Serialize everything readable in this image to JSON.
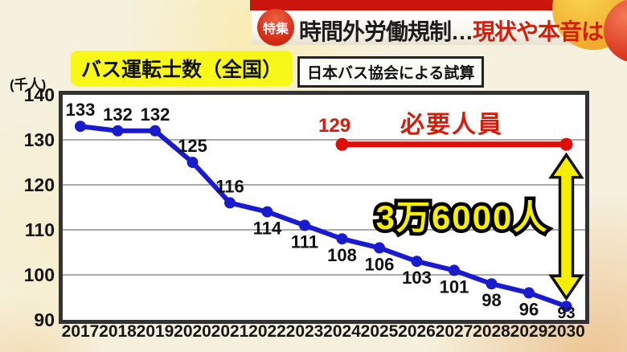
{
  "banner": {
    "badge_label": "特集",
    "headline_black": "時間外労働規制…",
    "headline_red": "現状や本音は"
  },
  "header": {
    "title": "バス運転士数（全国）",
    "source_note": "日本バス協会による試算"
  },
  "chart_data": {
    "type": "line",
    "title": "バス運転士数（全国）",
    "ylabel": "(千人)",
    "categories": [
      "2017",
      "2018",
      "2019",
      "2020",
      "2021",
      "2022",
      "2023",
      "2024",
      "2025",
      "2026",
      "2027",
      "2028",
      "2029",
      "2030"
    ],
    "series": [
      {
        "name": "バス運転士数",
        "color": "#1b1bce",
        "values": [
          133,
          132,
          132,
          125,
          116,
          114,
          111,
          108,
          106,
          103,
          101,
          98,
          96,
          93
        ]
      },
      {
        "name": "必要人員",
        "color": "#dd1009",
        "value": 129,
        "x_range": [
          "2024",
          "2030"
        ]
      }
    ],
    "annotations": {
      "required_value_label": "129",
      "required_label": "必要人員",
      "gap_label": "3万6000人",
      "gap_color": "#f6ee00"
    },
    "ylim": [
      90,
      140
    ],
    "yticks": [
      140,
      130,
      120,
      110,
      100,
      90
    ],
    "grid": true,
    "legend_position": "none"
  }
}
